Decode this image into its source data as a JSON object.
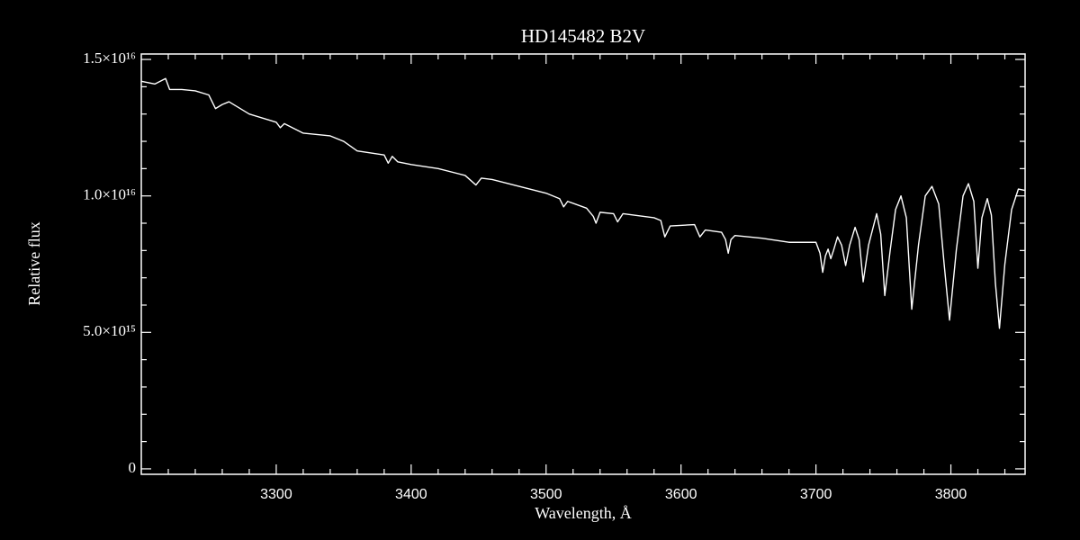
{
  "chart_data": {
    "type": "line",
    "title": "HD145482   B2V",
    "xlabel": "Wavelength, Å",
    "ylabel": "Relative flux",
    "color": "#ffffff",
    "xlim": [
      3200,
      3855
    ],
    "ylim": [
      -200000000000000.0,
      1.52e+16
    ],
    "xticks": [
      3300,
      3400,
      3500,
      3600,
      3700,
      3800
    ],
    "yticks": [
      0,
      {
        "value": 5000000000000000.0,
        "label": "5.0×10¹⁵"
      },
      {
        "value": 1e+16,
        "label": "1.0×10¹⁶"
      },
      {
        "value": 1.5e+16,
        "label": "1.5×10¹⁶"
      }
    ],
    "xminorticks": [
      3220,
      3240,
      3260,
      3280,
      3320,
      3340,
      3360,
      3380,
      3420,
      3440,
      3460,
      3480,
      3520,
      3540,
      3560,
      3580,
      3620,
      3640,
      3660,
      3680,
      3720,
      3740,
      3760,
      3780,
      3820,
      3840
    ],
    "yminorticks": [
      1000000000000000.0,
      2000000000000000.0,
      3000000000000000.0,
      4000000000000000.0,
      6000000000000000.0,
      7000000000000000.0,
      8000000000000000.0,
      9000000000000000.0,
      1.1e+16,
      1.2e+16,
      1.3e+16,
      1.4e+16
    ],
    "series": [
      {
        "x": [
          3200,
          3210,
          3218,
          3221,
          3230,
          3240,
          3250,
          3255,
          3260,
          3265,
          3280,
          3300,
          3303,
          3306,
          3320,
          3340,
          3350,
          3360,
          3380,
          3383,
          3386,
          3390,
          3400,
          3420,
          3440,
          3448,
          3452,
          3460,
          3480,
          3500,
          3510,
          3513,
          3516,
          3530,
          3535,
          3537,
          3540,
          3550,
          3553,
          3557,
          3580,
          3585,
          3588,
          3592,
          3610,
          3614,
          3618,
          3630,
          3633,
          3635,
          3637,
          3640,
          3660,
          3680,
          3700,
          3703,
          3705,
          3707,
          3709,
          3711,
          3713,
          3716,
          3719,
          3722,
          3725,
          3729,
          3732,
          3735,
          3739,
          3745,
          3748,
          3751,
          3755,
          3759,
          3763,
          3767,
          3771,
          3776,
          3781,
          3786,
          3791,
          3795,
          3799,
          3804,
          3809,
          3813,
          3817,
          3820,
          3823,
          3827,
          3830,
          3833,
          3836,
          3840,
          3845,
          3850,
          3855
        ],
        "values": [
          1.42e+16,
          1.41e+16,
          1.43e+16,
          1.39e+16,
          1.39e+16,
          1.385e+16,
          1.37e+16,
          1.32e+16,
          1.335e+16,
          1.345e+16,
          1.3e+16,
          1.27e+16,
          1.25e+16,
          1.265e+16,
          1.23e+16,
          1.22e+16,
          1.2e+16,
          1.165e+16,
          1.15e+16,
          1.12e+16,
          1.145e+16,
          1.125e+16,
          1.115e+16,
          1.1e+16,
          1.075e+16,
          1.04e+16,
          1.065e+16,
          1.06e+16,
          1.035e+16,
          1.01e+16,
          9900000000000000.0,
          9600000000000000.0,
          9800000000000000.0,
          9550000000000000.0,
          9250000000000000.0,
          9000000000000000.0,
          9400000000000000.0,
          9350000000000000.0,
          9050000000000000.0,
          9350000000000000.0,
          9200000000000000.0,
          9100000000000000.0,
          8500000000000000.0,
          8900000000000000.0,
          8950000000000000.0,
          8500000000000000.0,
          8750000000000000.0,
          8670000000000000.0,
          8400000000000000.0,
          7900000000000000.0,
          8400000000000000.0,
          8550000000000000.0,
          8450000000000000.0,
          8300000000000000.0,
          8300000000000000.0,
          7900000000000000.0,
          7200000000000000.0,
          7800000000000000.0,
          8050000000000000.0,
          7700000000000000.0,
          8000000000000000.0,
          8500000000000000.0,
          8200000000000000.0,
          7450000000000000.0,
          8200000000000000.0,
          8850000000000000.0,
          8400000000000000.0,
          6850000000000000.0,
          8200000000000000.0,
          9350000000000000.0,
          8600000000000000.0,
          6350000000000000.0,
          8000000000000000.0,
          9500000000000000.0,
          1e+16,
          9200000000000000.0,
          5850000000000000.0,
          8200000000000000.0,
          1e+16,
          1.035e+16,
          9700000000000000.0,
          7500000000000000.0,
          5450000000000000.0,
          8000000000000000.0,
          1e+16,
          1.045e+16,
          9800000000000000.0,
          7350000000000000.0,
          9200000000000000.0,
          9900000000000000.0,
          9300000000000000.0,
          6800000000000000.0,
          5150000000000000.0,
          7500000000000000.0,
          9500000000000000.0,
          1.025e+16,
          1.02e+16
        ]
      }
    ]
  }
}
